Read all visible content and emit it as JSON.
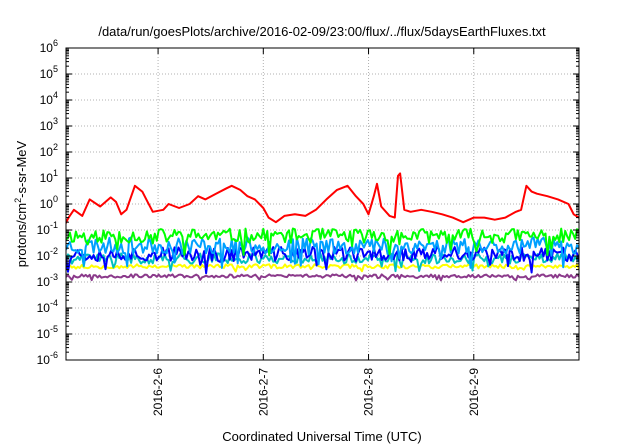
{
  "chart_data": {
    "type": "line",
    "title": "/data/run/goesPlots/archive/2016-02-09/23:00/flux/../flux/5daysEarthFluxes.txt",
    "xlabel": "Coordinated Universal Time (UTC)",
    "ylabel_main": "protons/cm",
    "ylabel_sup": "2",
    "ylabel_tail": "-s-sr-MeV",
    "x_ticks": [
      "2016-2-6",
      "2016-2-7",
      "2016-2-8",
      "2016-2-9"
    ],
    "x_range": [
      "2016-02-05 03:00",
      "2016-02-10 00:00"
    ],
    "y_scale": "log",
    "y_ticks": [
      {
        "base": "10",
        "exp": "6"
      },
      {
        "base": "10",
        "exp": "5"
      },
      {
        "base": "10",
        "exp": "4"
      },
      {
        "base": "10",
        "exp": "3"
      },
      {
        "base": "10",
        "exp": "2"
      },
      {
        "base": "10",
        "exp": "1"
      },
      {
        "base": "10",
        "exp": "0"
      },
      {
        "base": "10",
        "exp": "-1"
      },
      {
        "base": "10",
        "exp": "-2"
      },
      {
        "base": "10",
        "exp": "-3"
      },
      {
        "base": "10",
        "exp": "-4"
      },
      {
        "base": "10",
        "exp": "-5"
      },
      {
        "base": "10",
        "exp": "-6"
      }
    ],
    "ylim": [
      1e-06,
      1000000.0
    ],
    "grid": true,
    "series": [
      {
        "color": "#ff0000",
        "points": [
          [
            5.0,
            0.15
          ],
          [
            5.1,
            0.12
          ],
          [
            5.15,
            0.3
          ],
          [
            5.2,
            0.6
          ],
          [
            5.28,
            0.35
          ],
          [
            5.35,
            1.5
          ],
          [
            5.45,
            0.8
          ],
          [
            5.55,
            1.8
          ],
          [
            5.6,
            1.2
          ],
          [
            5.65,
            0.4
          ],
          [
            5.7,
            0.6
          ],
          [
            5.78,
            5.0
          ],
          [
            5.85,
            3.0
          ],
          [
            5.9,
            1.2
          ],
          [
            5.95,
            0.5
          ],
          [
            6.05,
            0.6
          ],
          [
            6.1,
            1.0
          ],
          [
            6.2,
            0.7
          ],
          [
            6.3,
            1.0
          ],
          [
            6.38,
            2.0
          ],
          [
            6.45,
            1.5
          ],
          [
            6.55,
            2.5
          ],
          [
            6.65,
            4.0
          ],
          [
            6.7,
            5.0
          ],
          [
            6.78,
            3.5
          ],
          [
            6.85,
            2.0
          ],
          [
            6.92,
            1.5
          ],
          [
            7.0,
            0.7
          ],
          [
            7.05,
            0.3
          ],
          [
            7.12,
            0.2
          ],
          [
            7.2,
            0.35
          ],
          [
            7.3,
            0.4
          ],
          [
            7.4,
            0.35
          ],
          [
            7.5,
            0.6
          ],
          [
            7.6,
            1.5
          ],
          [
            7.7,
            3.5
          ],
          [
            7.8,
            5.0
          ],
          [
            7.88,
            2.0
          ],
          [
            7.95,
            1.0
          ],
          [
            8.0,
            0.4
          ],
          [
            8.05,
            2.0
          ],
          [
            8.08,
            6.0
          ],
          [
            8.12,
            0.8
          ],
          [
            8.2,
            0.35
          ],
          [
            8.25,
            0.3
          ],
          [
            8.28,
            12.0
          ],
          [
            8.3,
            15.0
          ],
          [
            8.34,
            0.6
          ],
          [
            8.4,
            0.5
          ],
          [
            8.5,
            0.6
          ],
          [
            8.6,
            0.5
          ],
          [
            8.7,
            0.4
          ],
          [
            8.8,
            0.3
          ],
          [
            8.9,
            0.2
          ],
          [
            9.0,
            0.3
          ],
          [
            9.1,
            0.3
          ],
          [
            9.2,
            0.25
          ],
          [
            9.3,
            0.3
          ],
          [
            9.4,
            0.5
          ],
          [
            9.45,
            0.6
          ],
          [
            9.5,
            5.0
          ],
          [
            9.55,
            3.0
          ],
          [
            9.6,
            2.5
          ],
          [
            9.7,
            2.0
          ],
          [
            9.8,
            1.5
          ],
          [
            9.9,
            1.0
          ],
          [
            9.95,
            0.4
          ],
          [
            10.0,
            0.3
          ]
        ]
      },
      {
        "color": "#00ff00",
        "base": 0.06,
        "amp": 0.35,
        "seed": 11
      },
      {
        "color": "#00a0ff",
        "base": 0.025,
        "amp": 0.4,
        "seed": 23
      },
      {
        "color": "#0000ff",
        "base": 0.012,
        "amp": 0.35,
        "seed": 37
      },
      {
        "color": "#00c0c0",
        "base": 0.008,
        "amp": 0.25,
        "seed": 41
      },
      {
        "color": "#ffff00",
        "base": 0.004,
        "amp": 0.1,
        "seed": 53
      },
      {
        "color": "#8b3a8b",
        "base": 0.0017,
        "amp": 0.08,
        "seed": 67
      }
    ]
  }
}
